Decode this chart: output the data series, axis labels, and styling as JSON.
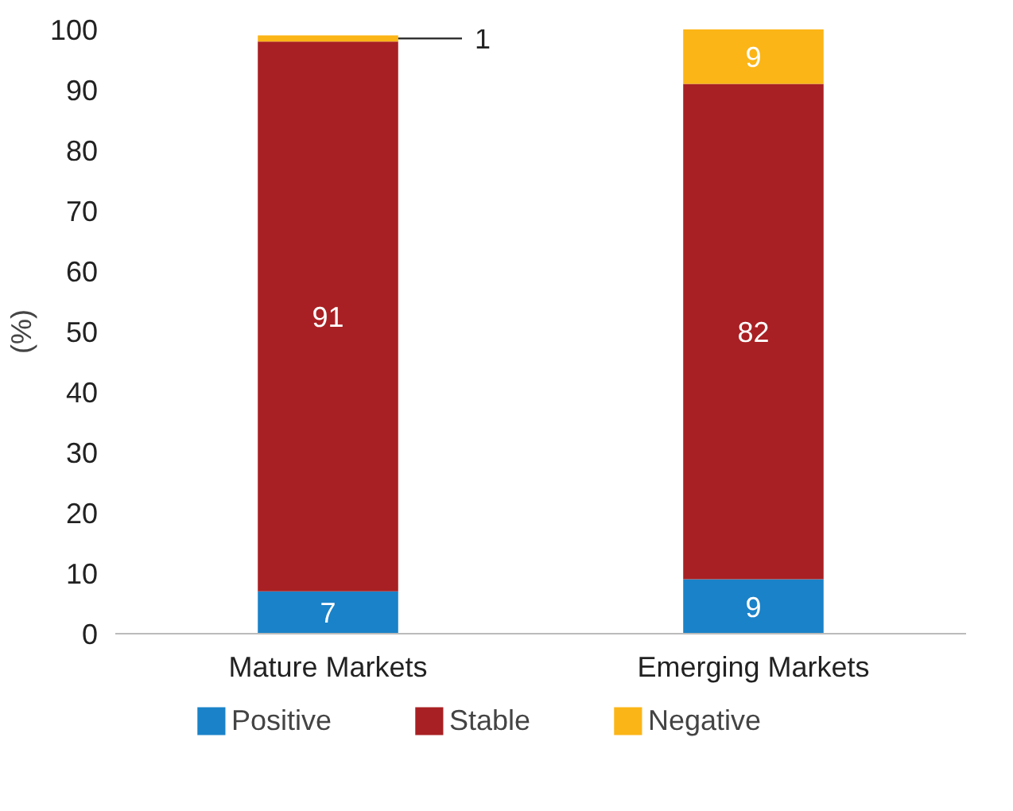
{
  "chart_data": {
    "type": "bar",
    "stacked": true,
    "ylabel": "(%)",
    "categories": [
      "Mature Markets",
      "Emerging Markets"
    ],
    "series": [
      {
        "name": "Positive",
        "color": "#1a82c8",
        "values": [
          7,
          9
        ]
      },
      {
        "name": "Stable",
        "color": "#a82023",
        "values": [
          91,
          82
        ]
      },
      {
        "name": "Negative",
        "color": "#fbb516",
        "values": [
          1,
          9
        ]
      }
    ],
    "ylim": [
      0,
      100
    ],
    "yticks": [
      0,
      10,
      20,
      30,
      40,
      50,
      60,
      70,
      80,
      90,
      100
    ],
    "grid": false,
    "legend": "bottom",
    "data_labels": true
  }
}
